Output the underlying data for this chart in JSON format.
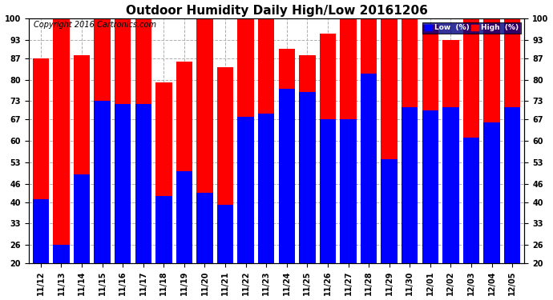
{
  "title": "Outdoor Humidity Daily High/Low 20161206",
  "copyright": "Copyright 2016 Cartronics.com",
  "legend_low": "Low  (%)",
  "legend_high": "High  (%)",
  "dates": [
    "11/12",
    "11/13",
    "11/14",
    "11/15",
    "11/16",
    "11/17",
    "11/18",
    "11/19",
    "11/20",
    "11/21",
    "11/22",
    "11/23",
    "11/24",
    "11/25",
    "11/26",
    "11/27",
    "11/28",
    "11/29",
    "11/30",
    "12/01",
    "12/02",
    "12/03",
    "12/04",
    "12/05"
  ],
  "high": [
    87,
    100,
    88,
    100,
    100,
    100,
    79,
    86,
    100,
    84,
    100,
    100,
    90,
    88,
    95,
    100,
    100,
    100,
    100,
    98,
    93,
    100,
    100,
    100
  ],
  "low": [
    41,
    26,
    49,
    73,
    72,
    72,
    42,
    50,
    43,
    39,
    68,
    69,
    77,
    76,
    67,
    67,
    82,
    54,
    71,
    70,
    71,
    61,
    66,
    71
  ],
  "high_color": "#ff0000",
  "low_color": "#0000ff",
  "bg_color": "#ffffff",
  "grid_color": "#b0b0b0",
  "ylim_min": 20,
  "ylim_max": 100,
  "yticks": [
    20,
    26,
    33,
    40,
    46,
    53,
    60,
    67,
    73,
    80,
    87,
    93,
    100
  ],
  "bar_width": 0.8,
  "title_fontsize": 11,
  "tick_fontsize": 7,
  "copyright_fontsize": 7
}
